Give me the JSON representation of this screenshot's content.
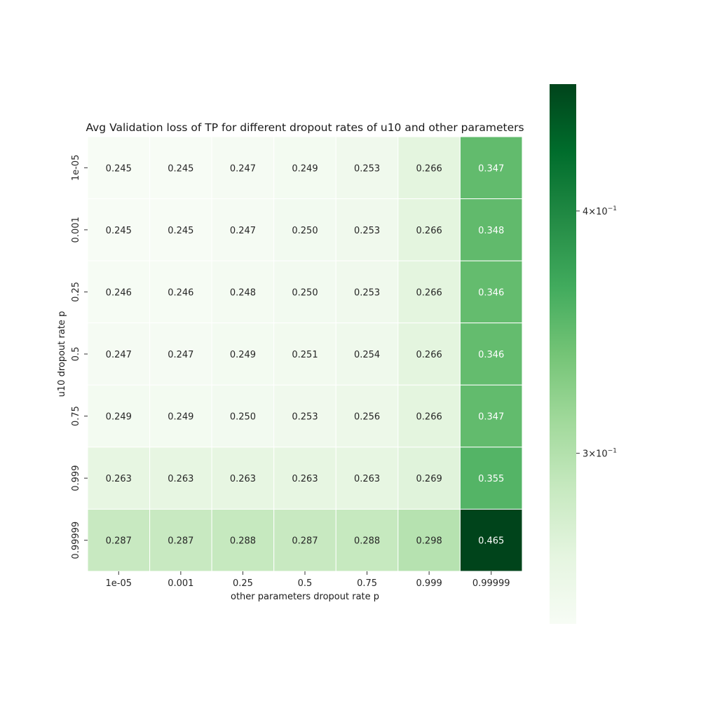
{
  "chart_data": {
    "type": "heatmap",
    "title": "Avg Validation loss of TP for different dropout rates of u10 and other parameters",
    "xlabel": "other parameters dropout rate p",
    "ylabel": "u10 dropout rate p",
    "x_categories": [
      "1e-05",
      "0.001",
      "0.25",
      "0.5",
      "0.75",
      "0.999",
      "0.99999"
    ],
    "y_categories": [
      "1e-05",
      "0.001",
      "0.25",
      "0.5",
      "0.75",
      "0.999",
      "0.99999"
    ],
    "values": [
      [
        0.245,
        0.245,
        0.247,
        0.249,
        0.253,
        0.266,
        0.347
      ],
      [
        0.245,
        0.245,
        0.247,
        0.25,
        0.253,
        0.266,
        0.348
      ],
      [
        0.246,
        0.246,
        0.248,
        0.25,
        0.253,
        0.266,
        0.346
      ],
      [
        0.247,
        0.247,
        0.249,
        0.251,
        0.254,
        0.266,
        0.346
      ],
      [
        0.249,
        0.249,
        0.25,
        0.253,
        0.256,
        0.266,
        0.347
      ],
      [
        0.263,
        0.263,
        0.263,
        0.263,
        0.263,
        0.269,
        0.355
      ],
      [
        0.287,
        0.287,
        0.288,
        0.287,
        0.288,
        0.298,
        0.465
      ]
    ],
    "value_format": "0.000",
    "colormap": "Greens",
    "colorbar": {
      "scale": "log",
      "range": [
        0.245,
        0.465
      ],
      "ticks": [
        {
          "value": 0.4,
          "label_base": "4",
          "label_mult": "×",
          "label_exp_base": "10",
          "label_exp": "−1"
        },
        {
          "value": 0.3,
          "label_base": "3",
          "label_mult": "×",
          "label_exp_base": "10",
          "label_exp": "−1"
        }
      ]
    },
    "grid": false
  }
}
